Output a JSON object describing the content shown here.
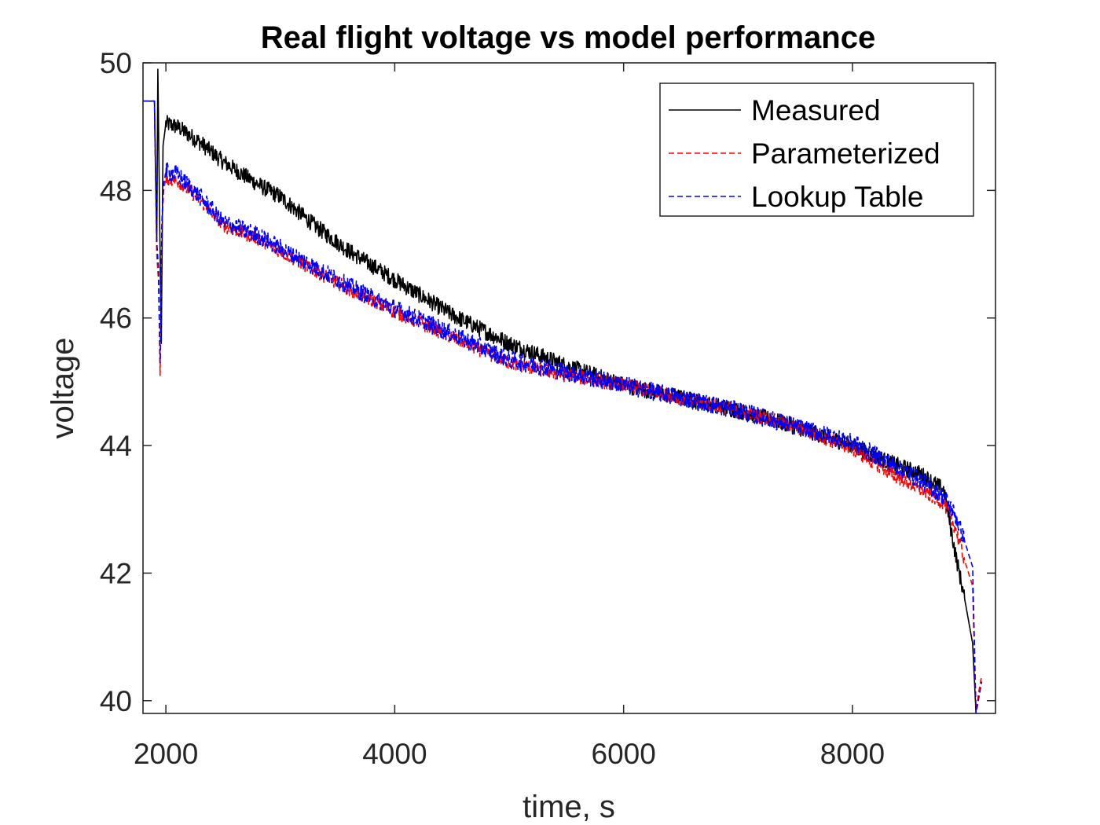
{
  "chart_data": {
    "type": "line",
    "title": "Real flight voltage vs model performance",
    "xlabel": "time, s",
    "ylabel": "voltage",
    "xlim": [
      1800,
      9250
    ],
    "ylim": [
      39.8,
      50
    ],
    "xticks": [
      2000,
      4000,
      6000,
      8000
    ],
    "yticks": [
      40,
      42,
      44,
      46,
      48,
      50
    ],
    "grid": false,
    "legend_position": "top-right",
    "series": [
      {
        "name": "Measured",
        "color": "#000000",
        "style": "solid",
        "noise": 0.13,
        "x": [
          1800,
          1900,
          1920,
          1930,
          1945,
          1960,
          1975,
          2000,
          2100,
          2300,
          2500,
          2800,
          3000,
          3300,
          3600,
          4000,
          4500,
          5000,
          5500,
          6000,
          6500,
          7000,
          7500,
          8000,
          8300,
          8600,
          8800,
          8900,
          8980,
          9050,
          9080
        ],
        "y": [
          49.4,
          49.4,
          47.2,
          49.9,
          47.6,
          45.6,
          48.7,
          49.05,
          49.0,
          48.75,
          48.45,
          48.1,
          47.9,
          47.45,
          47.05,
          46.6,
          46.05,
          45.6,
          45.25,
          44.95,
          44.75,
          44.55,
          44.3,
          44.0,
          43.75,
          43.55,
          43.3,
          42.3,
          41.6,
          40.9,
          39.8
        ]
      },
      {
        "name": "Parameterized",
        "color": "#ff0000",
        "style": "dashed",
        "noise": 0.11,
        "x": [
          1800,
          1900,
          1920,
          1935,
          1950,
          1965,
          1980,
          2000,
          2100,
          2300,
          2500,
          2800,
          3000,
          3300,
          3600,
          4000,
          4500,
          5000,
          5500,
          6000,
          6500,
          7000,
          7500,
          8000,
          8300,
          8600,
          8800,
          8900,
          8980,
          9050,
          9080,
          9100,
          9130
        ],
        "y": [
          49.4,
          49.4,
          47.0,
          46.6,
          45.1,
          47.4,
          48.0,
          48.2,
          48.15,
          47.85,
          47.45,
          47.25,
          47.05,
          46.75,
          46.45,
          46.1,
          45.7,
          45.3,
          45.1,
          44.95,
          44.75,
          44.55,
          44.3,
          43.95,
          43.6,
          43.3,
          43.1,
          42.7,
          42.2,
          41.8,
          39.8,
          40.1,
          40.4
        ]
      },
      {
        "name": "Lookup Table",
        "color": "#0000ff",
        "style": "dashed",
        "noise": 0.14,
        "x": [
          1800,
          1900,
          1920,
          1935,
          1950,
          1965,
          1980,
          2000,
          2100,
          2300,
          2500,
          2800,
          3000,
          3300,
          3600,
          4000,
          4500,
          5000,
          5500,
          6000,
          6500,
          7000,
          7500,
          8000,
          8300,
          8600,
          8800,
          8900,
          8980,
          9050,
          9080,
          9100,
          9130
        ],
        "y": [
          49.4,
          49.4,
          47.2,
          46.8,
          45.3,
          47.5,
          48.1,
          48.3,
          48.25,
          47.9,
          47.5,
          47.3,
          47.1,
          46.8,
          46.5,
          46.15,
          45.75,
          45.35,
          45.15,
          44.95,
          44.75,
          44.55,
          44.3,
          44.05,
          43.75,
          43.45,
          43.2,
          42.9,
          42.5,
          42.1,
          39.8,
          40.0,
          40.3
        ]
      }
    ]
  }
}
